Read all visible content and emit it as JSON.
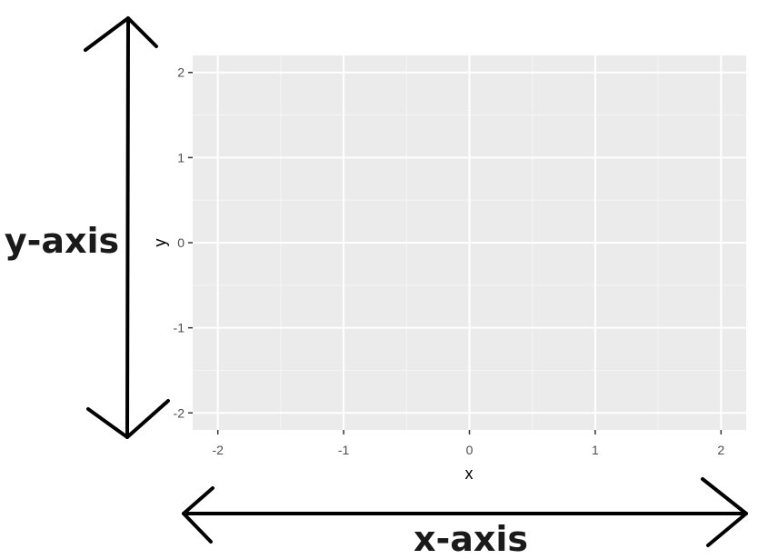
{
  "chart_data": {
    "type": "scatter",
    "title": "",
    "xlabel": "x",
    "ylabel": "y",
    "xlim": [
      -2.2,
      2.2
    ],
    "ylim": [
      -2.2,
      2.2
    ],
    "x_ticks": [
      -2,
      -1,
      0,
      1,
      2
    ],
    "y_ticks": [
      -2,
      -1,
      0,
      1,
      2
    ],
    "x_tick_labels": [
      "-2",
      "-1",
      "0",
      "1",
      "2"
    ],
    "y_tick_labels": [
      "-2",
      "-1",
      "0",
      "1",
      "2"
    ],
    "grid": true,
    "series": [],
    "annotations": {
      "y_axis": "y-axis",
      "x_axis": "x-axis"
    }
  },
  "colors": {
    "panel_background": "#ebebeb",
    "grid_major": "#ffffff",
    "grid_minor": "#f5f5f5",
    "tick_text": "#4d4d4d",
    "arrows": "#000000"
  }
}
